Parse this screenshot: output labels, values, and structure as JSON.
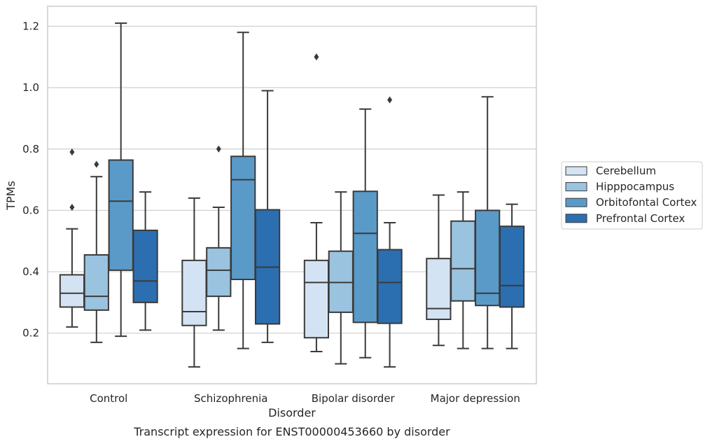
{
  "caption": "Transcript expression for ENST00000453660 by disorder",
  "chart_data": {
    "type": "box",
    "xlabel": "Disorder",
    "ylabel": "TPMs",
    "ylim": [
      0.035,
      1.265
    ],
    "yticks": [
      0.2,
      0.4,
      0.6,
      0.8,
      1.0,
      1.2
    ],
    "ytick_labels": [
      "0.2",
      "0.4",
      "0.6",
      "0.8",
      "1.0",
      "1.2"
    ],
    "grid": "horizontal",
    "legend_position": "right",
    "categories": [
      "Control",
      "Schizophrenia",
      "Bipolar disorder",
      "Major depression"
    ],
    "series": [
      {
        "name": "Cerebellum",
        "color": "#d4e3f3",
        "boxes": [
          {
            "whisker_low": 0.22,
            "q1": 0.285,
            "median": 0.33,
            "q3": 0.39,
            "whisker_high": 0.54,
            "outliers": [
              0.61,
              0.79
            ]
          },
          {
            "whisker_low": 0.09,
            "q1": 0.225,
            "median": 0.27,
            "q3": 0.437,
            "whisker_high": 0.64,
            "outliers": []
          },
          {
            "whisker_low": 0.14,
            "q1": 0.185,
            "median": 0.365,
            "q3": 0.437,
            "whisker_high": 0.56,
            "outliers": [
              1.1
            ]
          },
          {
            "whisker_low": 0.16,
            "q1": 0.245,
            "median": 0.28,
            "q3": 0.443,
            "whisker_high": 0.65,
            "outliers": []
          }
        ]
      },
      {
        "name": "Hipppocampus",
        "color": "#9ac3e0",
        "boxes": [
          {
            "whisker_low": 0.17,
            "q1": 0.275,
            "median": 0.32,
            "q3": 0.455,
            "whisker_high": 0.71,
            "outliers": [
              0.75
            ]
          },
          {
            "whisker_low": 0.21,
            "q1": 0.32,
            "median": 0.405,
            "q3": 0.478,
            "whisker_high": 0.61,
            "outliers": [
              0.8
            ]
          },
          {
            "whisker_low": 0.1,
            "q1": 0.268,
            "median": 0.365,
            "q3": 0.467,
            "whisker_high": 0.66,
            "outliers": []
          },
          {
            "whisker_low": 0.15,
            "q1": 0.305,
            "median": 0.41,
            "q3": 0.565,
            "whisker_high": 0.66,
            "outliers": []
          }
        ]
      },
      {
        "name": "Orbitofontal Cortex",
        "color": "#5a9ac8",
        "boxes": [
          {
            "whisker_low": 0.19,
            "q1": 0.405,
            "median": 0.63,
            "q3": 0.764,
            "whisker_high": 1.21,
            "outliers": []
          },
          {
            "whisker_low": 0.15,
            "q1": 0.375,
            "median": 0.7,
            "q3": 0.776,
            "whisker_high": 1.18,
            "outliers": []
          },
          {
            "whisker_low": 0.12,
            "q1": 0.235,
            "median": 0.525,
            "q3": 0.662,
            "whisker_high": 0.93,
            "outliers": []
          },
          {
            "whisker_low": 0.15,
            "q1": 0.29,
            "median": 0.33,
            "q3": 0.6,
            "whisker_high": 0.97,
            "outliers": []
          }
        ]
      },
      {
        "name": "Prefrontal Cortex",
        "color": "#2b6fb0",
        "boxes": [
          {
            "whisker_low": 0.21,
            "q1": 0.3,
            "median": 0.37,
            "q3": 0.535,
            "whisker_high": 0.66,
            "outliers": []
          },
          {
            "whisker_low": 0.17,
            "q1": 0.23,
            "median": 0.415,
            "q3": 0.602,
            "whisker_high": 0.99,
            "outliers": []
          },
          {
            "whisker_low": 0.09,
            "q1": 0.232,
            "median": 0.365,
            "q3": 0.472,
            "whisker_high": 0.56,
            "outliers": [
              0.96
            ]
          },
          {
            "whisker_low": 0.15,
            "q1": 0.285,
            "median": 0.355,
            "q3": 0.548,
            "whisker_high": 0.62,
            "outliers": []
          }
        ]
      }
    ]
  }
}
